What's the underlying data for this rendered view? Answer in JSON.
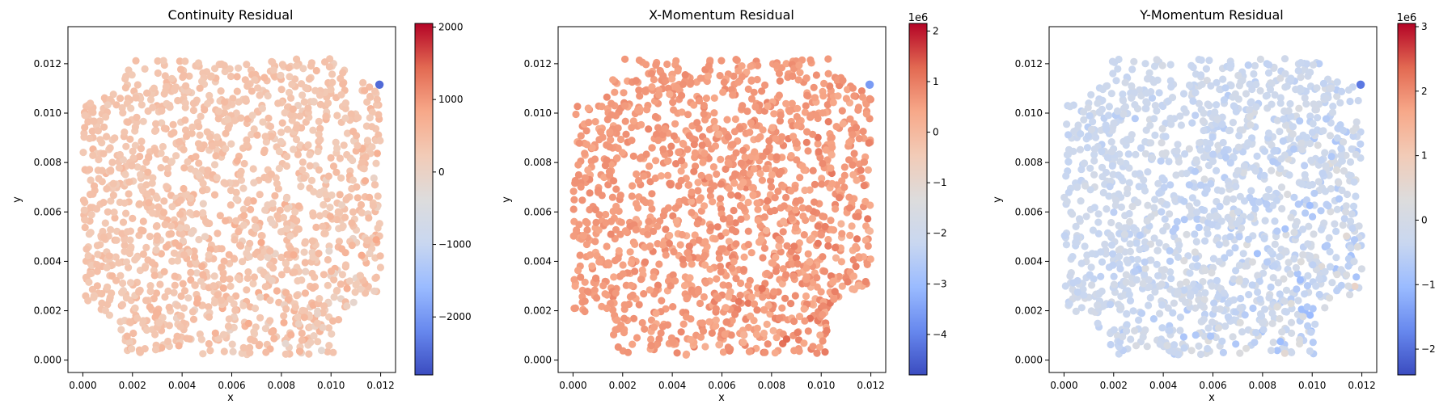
{
  "figure": {
    "colormap": "coolwarm",
    "colormap_stops": [
      "#3b4cc0",
      "#6788ee",
      "#9abbff",
      "#c9d7f0",
      "#dddcdc",
      "#f2cbb7",
      "#f7a889",
      "#e26952",
      "#b40426"
    ]
  },
  "chart_data": [
    {
      "type": "scatter",
      "title": "Continuity Residual",
      "xlabel": "x",
      "ylabel": "y",
      "xlim": [
        -0.0006,
        0.0126
      ],
      "ylim": [
        -0.0005,
        0.0135
      ],
      "xticks": [
        "0.000",
        "0.002",
        "0.004",
        "0.006",
        "0.008",
        "0.010",
        "0.012"
      ],
      "yticks": [
        "0.000",
        "0.002",
        "0.004",
        "0.006",
        "0.008",
        "0.010",
        "0.012"
      ],
      "colorbar": {
        "min": -2800,
        "max": 2050,
        "ticks": [
          -2000,
          -1000,
          0,
          1000,
          2000
        ],
        "tick_labels": [
          "−2000",
          "−1000",
          "0",
          "1000",
          "2000"
        ],
        "offset_label": ""
      },
      "color_description": {
        "typical_value": 350,
        "spread": 350,
        "highlight_value": -2500
      }
    },
    {
      "type": "scatter",
      "title": "X-Momentum Residual",
      "xlabel": "x",
      "ylabel": "y",
      "xlim": [
        -0.0006,
        0.0126
      ],
      "ylim": [
        -0.0005,
        0.0135
      ],
      "xticks": [
        "0.000",
        "0.002",
        "0.004",
        "0.006",
        "0.008",
        "0.010",
        "0.012"
      ],
      "yticks": [
        "0.000",
        "0.002",
        "0.004",
        "0.006",
        "0.008",
        "0.010",
        "0.012"
      ],
      "colorbar": {
        "min": -4.8,
        "max": 2.15,
        "ticks": [
          -4,
          -3,
          -2,
          -1,
          0,
          1,
          2
        ],
        "tick_labels": [
          "−4",
          "−3",
          "−2",
          "−1",
          "0",
          "1",
          "2"
        ],
        "offset_label": "1e6"
      },
      "color_description": {
        "typical_value": 0.6,
        "spread": 0.45,
        "highlight_value": -3.6
      }
    },
    {
      "type": "scatter",
      "title": "Y-Momentum Residual",
      "xlabel": "x",
      "ylabel": "y",
      "xlim": [
        -0.0006,
        0.0126
      ],
      "ylim": [
        -0.0005,
        0.0135
      ],
      "xticks": [
        "0.000",
        "0.002",
        "0.004",
        "0.006",
        "0.008",
        "0.010",
        "0.012"
      ],
      "yticks": [
        "0.000",
        "0.002",
        "0.004",
        "0.006",
        "0.008",
        "0.010",
        "0.012"
      ],
      "colorbar": {
        "min": -2.4,
        "max": 3.05,
        "ticks": [
          -2,
          -1,
          0,
          1,
          2,
          3
        ],
        "tick_labels": [
          "−2",
          "−1",
          "0",
          "1",
          "2",
          "3"
        ],
        "offset_label": "1e6"
      },
      "color_description": {
        "typical_value": -0.25,
        "spread": 0.55,
        "highlight_value": -1.9
      }
    }
  ]
}
